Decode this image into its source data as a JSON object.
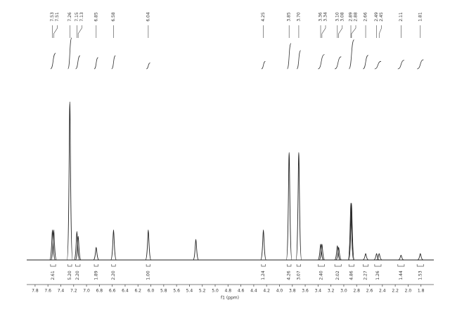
{
  "chart_data": {
    "type": "spectrum",
    "x_label": "f1 (ppm)",
    "xlim": [
      7.93,
      1.6
    ],
    "ylim": [
      0,
      100
    ],
    "xticks": [
      7.8,
      7.6,
      7.4,
      7.2,
      {
        "value": 7,
        "label": "7.0"
      },
      6.8,
      6.6,
      6.4,
      6.2,
      {
        "value": 6,
        "label": "6.0"
      },
      5.8,
      5.6,
      5.4,
      5.2,
      {
        "value": 5,
        "label": "5.0"
      },
      4.8,
      4.6,
      4.4,
      4.2,
      {
        "value": 4,
        "label": "4.0"
      },
      3.8,
      3.6,
      3.4,
      3.2,
      {
        "value": 3,
        "label": "3.0"
      },
      2.8,
      2.6,
      2.4,
      2.2,
      {
        "value": 2,
        "label": "2.0"
      },
      1.8
    ],
    "color": "#222222",
    "peaks": {
      "x": [
        7.53,
        7.51,
        7.26,
        7.15,
        7.13,
        6.85,
        6.58,
        6.04,
        5.3,
        4.25,
        3.85,
        3.7,
        3.36,
        3.34,
        3.1,
        3.08,
        2.89,
        2.88,
        2.66,
        2.49,
        2.45,
        2.11,
        1.81
      ],
      "values": [
        19,
        19,
        100,
        18,
        15,
        8,
        19,
        19,
        13,
        19,
        68,
        68,
        10,
        10,
        9,
        8,
        36,
        36,
        4,
        4,
        4,
        3,
        4
      ]
    },
    "peak_labels": [
      7.53,
      7.51,
      7.26,
      7.15,
      7.13,
      6.85,
      6.58,
      6.04,
      4.25,
      3.85,
      {
        "value": 3.7,
        "label": "3.70"
      },
      3.36,
      3.34,
      {
        "value": 3.1,
        "label": "3.10"
      },
      3.08,
      2.89,
      2.88,
      2.66,
      2.49,
      2.45,
      2.11,
      1.81
    ],
    "integrals": {
      "ranges": [
        [
          7.56,
          7.48
        ],
        [
          7.29,
          7.23
        ],
        [
          7.17,
          7.1
        ],
        [
          6.88,
          6.82
        ],
        [
          6.61,
          6.55
        ],
        [
          6.07,
          6.01
        ],
        [
          4.28,
          4.22
        ],
        [
          3.88,
          3.82
        ],
        [
          3.73,
          3.67
        ],
        [
          3.4,
          3.3
        ],
        [
          3.14,
          3.04
        ],
        [
          2.92,
          2.84
        ],
        [
          2.7,
          2.62
        ],
        [
          2.52,
          2.42
        ],
        [
          2.16,
          2.06
        ],
        [
          1.86,
          1.76
        ]
      ],
      "values": [
        2.61,
        5.2,
        2.2,
        1.89,
        2.2,
        1.0,
        1.24,
        4.26,
        3.07,
        2.4,
        2.02,
        4.86,
        2.27,
        1.26,
        1.44,
        1.53
      ],
      "value_labels": [
        "2.61",
        "5.20",
        "2.20",
        "1.89",
        "2.20",
        "1.00",
        "1.24",
        "4.26",
        "3.07",
        "2.40",
        "2.02",
        "4.86",
        "2.27",
        "1.26",
        "1.44",
        "1.53"
      ]
    }
  }
}
